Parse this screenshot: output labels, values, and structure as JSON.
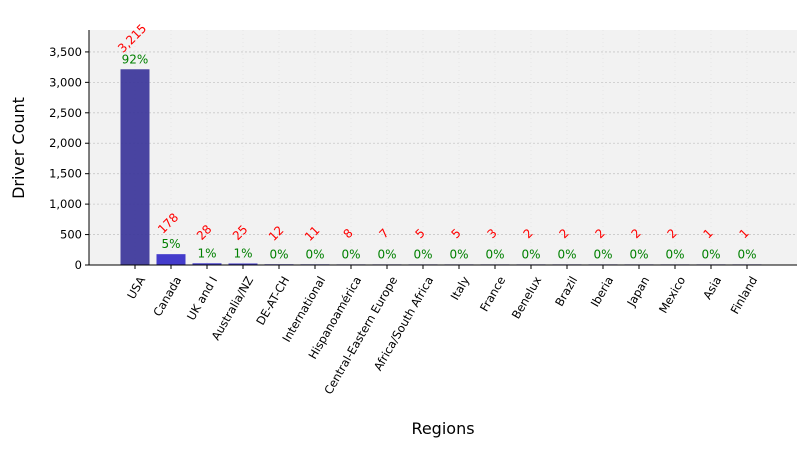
{
  "chart_data": {
    "type": "bar",
    "title": "",
    "xlabel": "Regions",
    "ylabel": "Driver Count",
    "ylim": [
      0,
      3860
    ],
    "yticks": [
      0,
      500,
      1000,
      1500,
      2000,
      2500,
      3000,
      3500
    ],
    "ytick_labels": [
      "0",
      "500",
      "1,000",
      "1,500",
      "2,000",
      "2,500",
      "3,000",
      "3,500"
    ],
    "grid": true,
    "categories": [
      "USA",
      "Canada",
      "UK and I",
      "Australia/NZ",
      "DE-AT-CH",
      "International",
      "Hispanoamérica",
      "Central-Eastern Europe",
      "Africa/South Africa",
      "Italy",
      "France",
      "Benelux",
      "Brazil",
      "Iberia",
      "Japan",
      "Mexico",
      "Asia",
      "Finland"
    ],
    "values": [
      3215,
      178,
      28,
      25,
      12,
      11,
      8,
      7,
      5,
      5,
      3,
      2,
      2,
      2,
      2,
      2,
      1,
      1
    ],
    "count_labels": [
      "3,215",
      "178",
      "28",
      "25",
      "12",
      "11",
      "8",
      "7",
      "5",
      "5",
      "3",
      "2",
      "2",
      "2",
      "2",
      "2",
      "1",
      "1"
    ],
    "percent_labels": [
      "92%",
      "5%",
      "1%",
      "1%",
      "0%",
      "0%",
      "0%",
      "0%",
      "0%",
      "0%",
      "0%",
      "0%",
      "0%",
      "0%",
      "0%",
      "0%",
      "0%",
      "0%"
    ],
    "colors": {
      "bar_top": "#3a32c8",
      "bar_first": "#3f3a9c",
      "count_label": "#ff0000",
      "percent_label": "#008000",
      "plot_background": "#f2f2f2",
      "grid": "#c8c8c8"
    }
  }
}
